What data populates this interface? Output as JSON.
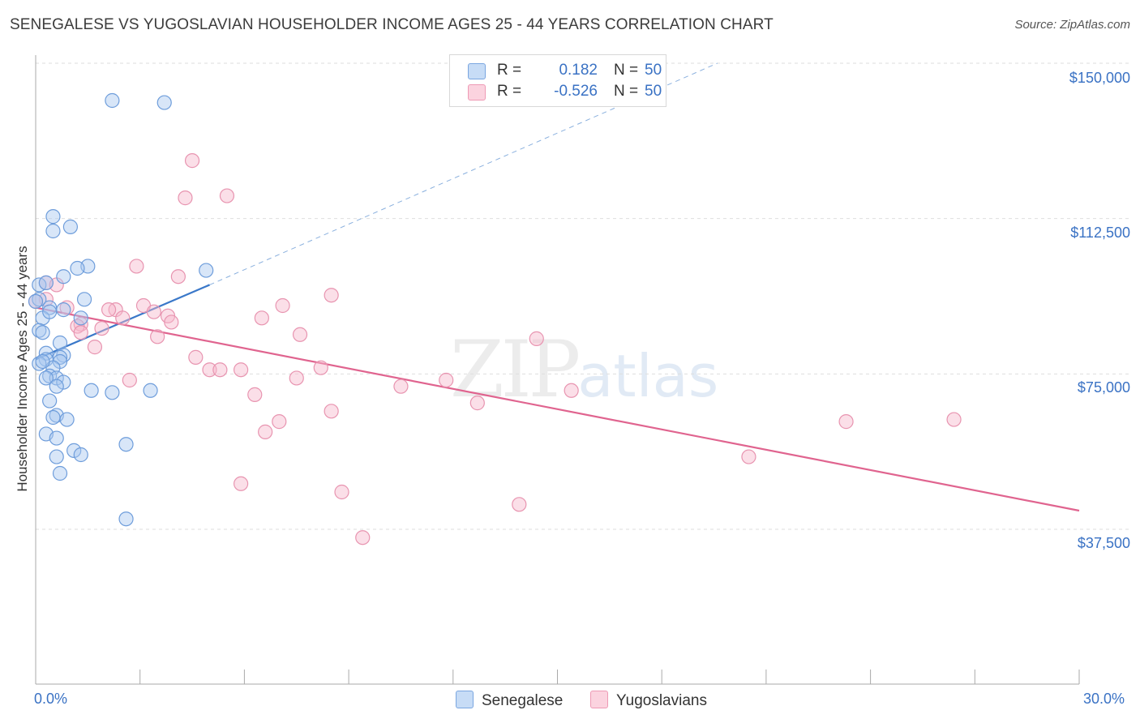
{
  "title": "SENEGALESE VS YUGOSLAVIAN HOUSEHOLDER INCOME AGES 25 - 44 YEARS CORRELATION CHART",
  "source": "Source: ZipAtlas.com",
  "watermark": {
    "zip": "ZIP",
    "atlas": "atlas"
  },
  "legend": {
    "rows": [
      {
        "r_label": "R =",
        "r_value": "0.182",
        "n_label": "N =",
        "n_value": "50",
        "color": "#a8c7f0"
      },
      {
        "r_label": "R =",
        "r_value": "-0.526",
        "n_label": "N =",
        "n_value": "50",
        "color": "#f6b8cb"
      }
    ]
  },
  "bottom_legend": [
    {
      "label": "Senegalese",
      "color": "#a8c7f0"
    },
    {
      "label": "Yugoslavians",
      "color": "#f6b8cb"
    }
  ],
  "axis_labels": {
    "x_min": "0.0%",
    "x_max": "30.0%",
    "y_title": "Householder Income Ages 25 - 44 years"
  },
  "y_tick_labels": [
    "$150,000",
    "$112,500",
    "$75,000",
    "$37,500"
  ],
  "colors": {
    "blue": "#3a78c9",
    "blue_fill": "#a8c7f0",
    "pink": "#e0648f",
    "pink_fill": "#f6b8cb",
    "tick_text": "#3a72c4"
  },
  "chart_data": {
    "type": "scatter",
    "title": "SENEGALESE VS YUGOSLAVIAN HOUSEHOLDER INCOME AGES 25 - 44 YEARS CORRELATION CHART",
    "xlabel": "",
    "ylabel": "Householder Income Ages 25 - 44 years",
    "xlim": [
      0,
      30
    ],
    "ylim": [
      0,
      153000
    ],
    "y_ticks": [
      37500,
      75000,
      112500,
      150000
    ],
    "grid": true,
    "series": [
      {
        "name": "Senegalese",
        "r": 0.182,
        "n": 50,
        "trend": {
          "x0": 0,
          "y0": 78500,
          "x1": 5.0,
          "y1": 96500,
          "x1_dashed": 19.6,
          "y1_dashed": 150000
        },
        "points": [
          [
            2.2,
            141000
          ],
          [
            3.7,
            140500
          ],
          [
            0.5,
            113000
          ],
          [
            1.0,
            110500
          ],
          [
            0.5,
            109500
          ],
          [
            1.5,
            101000
          ],
          [
            1.2,
            100500
          ],
          [
            4.9,
            100000
          ],
          [
            0.8,
            98500
          ],
          [
            0.1,
            96500
          ],
          [
            1.4,
            93000
          ],
          [
            0.1,
            93000
          ],
          [
            0.4,
            91000
          ],
          [
            0.8,
            90500
          ],
          [
            1.3,
            88500
          ],
          [
            0.2,
            88500
          ],
          [
            0.1,
            85500
          ],
          [
            0.2,
            85000
          ],
          [
            0.7,
            82500
          ],
          [
            0.3,
            80000
          ],
          [
            0.8,
            79500
          ],
          [
            0.7,
            79000
          ],
          [
            0.3,
            78500
          ],
          [
            0.7,
            78000
          ],
          [
            0.1,
            77500
          ],
          [
            0.5,
            76500
          ],
          [
            0.4,
            74500
          ],
          [
            0.6,
            74000
          ],
          [
            0.3,
            74000
          ],
          [
            0.8,
            73000
          ],
          [
            0.6,
            72000
          ],
          [
            1.6,
            71000
          ],
          [
            2.2,
            70500
          ],
          [
            3.3,
            71000
          ],
          [
            0.4,
            68500
          ],
          [
            0.6,
            65000
          ],
          [
            0.5,
            64500
          ],
          [
            0.9,
            64000
          ],
          [
            0.3,
            60500
          ],
          [
            0.6,
            59500
          ],
          [
            2.6,
            58000
          ],
          [
            1.1,
            56500
          ],
          [
            1.3,
            55500
          ],
          [
            0.6,
            55000
          ],
          [
            0.7,
            51000
          ],
          [
            2.6,
            40000
          ],
          [
            0.3,
            97000
          ],
          [
            0.0,
            92500
          ],
          [
            0.2,
            78000
          ],
          [
            0.4,
            90000
          ]
        ]
      },
      {
        "name": "Yugoslavians",
        "r": -0.526,
        "n": 50,
        "trend": {
          "x0": 0,
          "y0": 91000,
          "x1": 30.0,
          "y1": 42000
        },
        "points": [
          [
            4.5,
            126500
          ],
          [
            5.5,
            118000
          ],
          [
            4.3,
            117500
          ],
          [
            2.9,
            101000
          ],
          [
            4.1,
            98500
          ],
          [
            0.3,
            97000
          ],
          [
            0.6,
            96500
          ],
          [
            8.5,
            94000
          ],
          [
            0.3,
            93000
          ],
          [
            3.1,
            91500
          ],
          [
            7.1,
            91500
          ],
          [
            0.9,
            91000
          ],
          [
            2.3,
            90500
          ],
          [
            2.1,
            90500
          ],
          [
            3.4,
            90000
          ],
          [
            3.8,
            89000
          ],
          [
            2.5,
            88500
          ],
          [
            6.5,
            88500
          ],
          [
            3.9,
            87500
          ],
          [
            1.3,
            87000
          ],
          [
            1.2,
            86500
          ],
          [
            1.9,
            86000
          ],
          [
            1.3,
            85000
          ],
          [
            7.6,
            84500
          ],
          [
            3.5,
            84000
          ],
          [
            14.4,
            83500
          ],
          [
            1.7,
            81500
          ],
          [
            4.6,
            79000
          ],
          [
            8.2,
            76500
          ],
          [
            5.0,
            76000
          ],
          [
            5.3,
            76000
          ],
          [
            5.9,
            76000
          ],
          [
            7.5,
            74000
          ],
          [
            2.7,
            73500
          ],
          [
            11.8,
            73500
          ],
          [
            10.5,
            72000
          ],
          [
            15.4,
            71000
          ],
          [
            6.3,
            70000
          ],
          [
            12.7,
            68000
          ],
          [
            8.5,
            66000
          ],
          [
            7.0,
            63500
          ],
          [
            23.3,
            63500
          ],
          [
            26.4,
            64000
          ],
          [
            6.6,
            61000
          ],
          [
            20.5,
            55000
          ],
          [
            5.9,
            48500
          ],
          [
            8.8,
            46500
          ],
          [
            13.9,
            43500
          ],
          [
            9.4,
            35500
          ],
          [
            0.0,
            92500
          ]
        ]
      }
    ]
  }
}
